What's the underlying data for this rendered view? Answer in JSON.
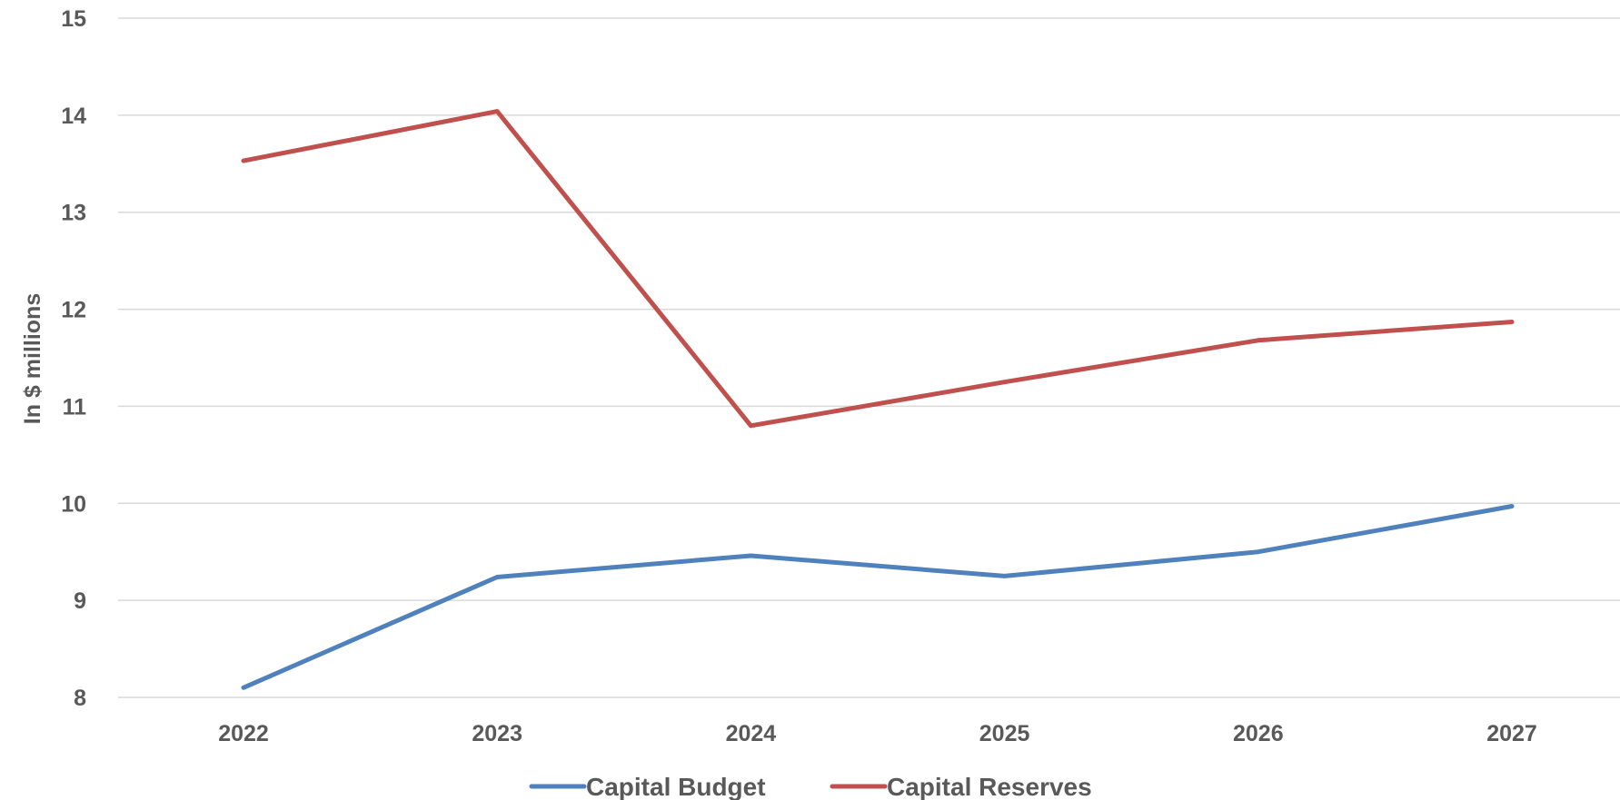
{
  "chart_data": {
    "type": "line",
    "categories": [
      "2022",
      "2023",
      "2024",
      "2025",
      "2026",
      "2027"
    ],
    "series": [
      {
        "name": "Capital Budget",
        "color": "#4f81bd",
        "values": [
          8.1,
          9.24,
          9.46,
          9.25,
          9.5,
          9.97
        ]
      },
      {
        "name": "Capital Reserves",
        "color": "#c0504d",
        "values": [
          13.53,
          14.04,
          10.8,
          11.25,
          11.68,
          11.87
        ]
      }
    ],
    "ylabel": "In $ millions",
    "ylim": [
      8,
      15
    ],
    "yticks": [
      "8",
      "9",
      "10",
      "11",
      "12",
      "13",
      "14",
      "15"
    ],
    "grid": true,
    "legend_position": "bottom"
  }
}
